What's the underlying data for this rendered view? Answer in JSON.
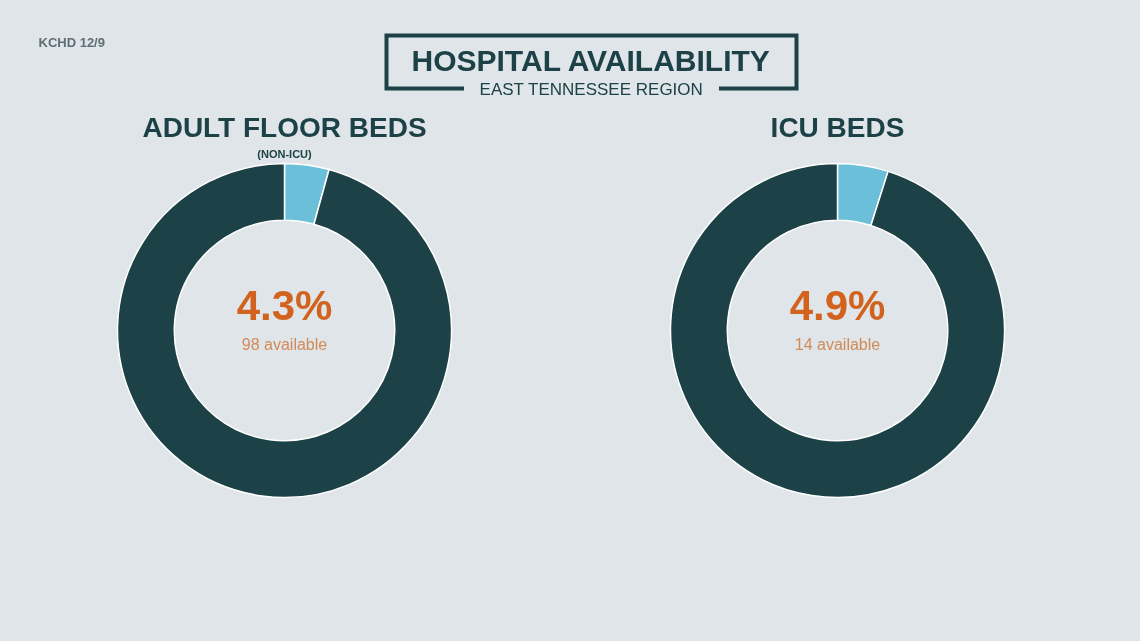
{
  "chart_data": [
    {
      "type": "other",
      "title": "HOSPITAL AVAILABILITY",
      "subtitle": "EAST TENNESSEE REGION",
      "annotations": [
        "KCHD 12/9"
      ]
    },
    {
      "type": "donut",
      "title": "ADULT FLOOR BEDS",
      "subtitle": "(NON-ICU)",
      "categories": [
        null,
        null
      ],
      "values": [
        4.3,
        95.7
      ],
      "colors": [
        "#6bbfd9",
        "#1c4146"
      ],
      "value_labels": [
        "4.3%",
        null
      ],
      "annotations": [
        "98 available"
      ]
    },
    {
      "type": "donut",
      "title": "ICU BEDS",
      "categories": [
        null,
        null
      ],
      "values": [
        4.9,
        95.1
      ],
      "colors": [
        "#6bbfd9",
        "#1c4146"
      ],
      "value_labels": [
        "4.9%",
        null
      ],
      "annotations": [
        "14 available"
      ]
    }
  ]
}
